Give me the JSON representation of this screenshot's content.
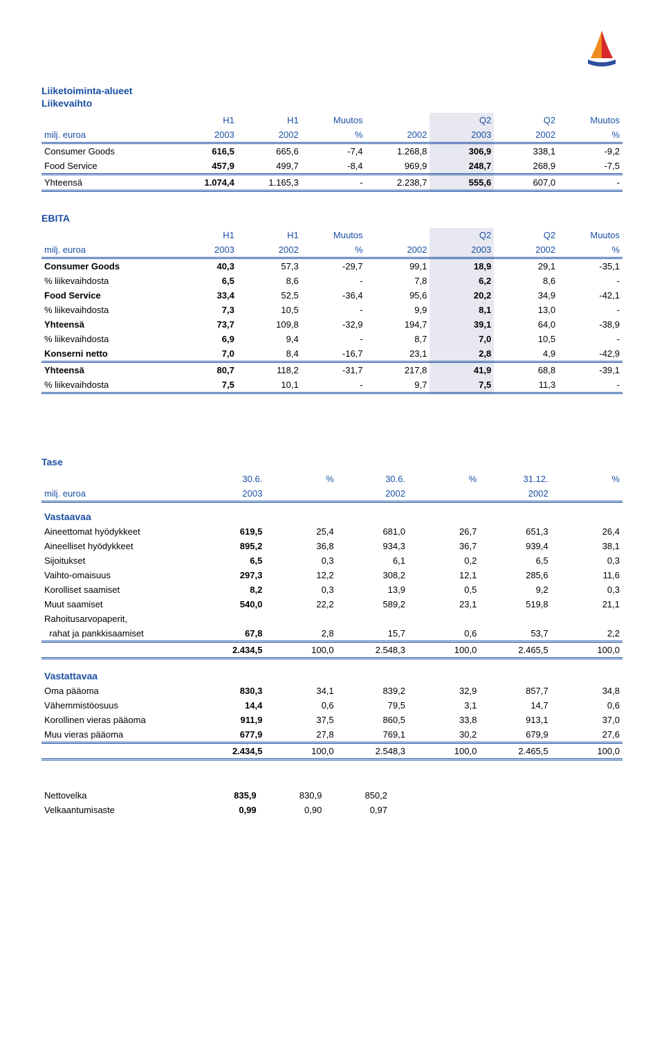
{
  "colors": {
    "heading": "#1a4fa3",
    "highlight_bg": "#e8e8f0",
    "rule": "#1a4fa3",
    "text": "#000000",
    "logo_orange": "#f18a1f",
    "logo_red": "#d7262c",
    "logo_blue": "#2b4f9e"
  },
  "liikevaihto": {
    "title": "Liiketoiminta-alueet",
    "subtitle": "Liikevaihto",
    "hdr1": [
      "",
      "H1",
      "H1",
      "Muutos",
      "",
      "Q2",
      "Q2",
      "Muutos"
    ],
    "hdr2": [
      "milj. euroa",
      "2003",
      "2002",
      "%",
      "2002",
      "2003",
      "2002",
      "%"
    ],
    "rows": [
      {
        "label": "Consumer Goods",
        "bold": false,
        "v": [
          "616,5",
          "665,6",
          "-7,4",
          "1.268,8",
          "306,9",
          "338,1",
          "-9,2"
        ]
      },
      {
        "label": "Food Service",
        "bold": false,
        "v": [
          "457,9",
          "499,7",
          "-8,4",
          "969,9",
          "248,7",
          "268,9",
          "-7,5"
        ]
      }
    ],
    "total": {
      "label": "Yhteensä",
      "v": [
        "1.074,4",
        "1.165,3",
        "-",
        "2.238,7",
        "555,6",
        "607,0",
        "-"
      ]
    }
  },
  "ebita": {
    "title": "EBITA",
    "hdr1": [
      "",
      "H1",
      "H1",
      "Muutos",
      "",
      "Q2",
      "Q2",
      "Muutos"
    ],
    "hdr2": [
      "milj. euroa",
      "2003",
      "2002",
      "%",
      "2002",
      "2003",
      "2002",
      "%"
    ],
    "rows": [
      {
        "label": "Consumer Goods",
        "bold": true,
        "v": [
          "40,3",
          "57,3",
          "-29,7",
          "99,1",
          "18,9",
          "29,1",
          "-35,1"
        ]
      },
      {
        "label": "% liikevaihdosta",
        "bold": false,
        "v": [
          "6,5",
          "8,6",
          "-",
          "7,8",
          "6,2",
          "8,6",
          "-"
        ]
      },
      {
        "label": "Food Service",
        "bold": true,
        "v": [
          "33,4",
          "52,5",
          "-36,4",
          "95,6",
          "20,2",
          "34,9",
          "-42,1"
        ]
      },
      {
        "label": "% liikevaihdosta",
        "bold": false,
        "v": [
          "7,3",
          "10,5",
          "-",
          "9,9",
          "8,1",
          "13,0",
          "-"
        ]
      },
      {
        "label": "Yhteensä",
        "bold": true,
        "v": [
          "73,7",
          "109,8",
          "-32,9",
          "194,7",
          "39,1",
          "64,0",
          "-38,9"
        ]
      },
      {
        "label": "% liikevaihdosta",
        "bold": false,
        "v": [
          "6,9",
          "9,4",
          "-",
          "8,7",
          "7,0",
          "10,5",
          "-"
        ]
      },
      {
        "label": "Konserni netto",
        "bold": true,
        "v": [
          "7,0",
          "8,4",
          "-16,7",
          "23,1",
          "2,8",
          "4,9",
          "-42,9"
        ]
      }
    ],
    "totals": [
      {
        "label": "Yhteensä",
        "bold": true,
        "v": [
          "80,7",
          "118,2",
          "-31,7",
          "217,8",
          "41,9",
          "68,8",
          "-39,1"
        ]
      },
      {
        "label": "% liikevaihdosta",
        "bold": false,
        "v": [
          "7,5",
          "10,1",
          "-",
          "9,7",
          "7,5",
          "11,3",
          "-"
        ]
      }
    ]
  },
  "tase": {
    "title": "Tase",
    "hdr1": [
      "",
      "30.6.",
      "%",
      "30.6.",
      "%",
      "31.12.",
      "%"
    ],
    "hdr2": [
      "milj. euroa",
      "2003",
      "",
      "2002",
      "",
      "2002",
      ""
    ],
    "vastaavaa_title": "Vastaavaa",
    "vastaavaa": [
      {
        "label": "Aineettomat hyödykkeet",
        "v": [
          "619,5",
          "25,4",
          "681,0",
          "26,7",
          "651,3",
          "26,4"
        ]
      },
      {
        "label": "Aineelliset hyödykkeet",
        "v": [
          "895,2",
          "36,8",
          "934,3",
          "36,7",
          "939,4",
          "38,1"
        ]
      },
      {
        "label": "Sijoitukset",
        "v": [
          "6,5",
          "0,3",
          "6,1",
          "0,2",
          "6,5",
          "0,3"
        ]
      },
      {
        "label": "Vaihto-omaisuus",
        "v": [
          "297,3",
          "12,2",
          "308,2",
          "12,1",
          "285,6",
          "11,6"
        ]
      },
      {
        "label": "Korolliset saamiset",
        "v": [
          "8,2",
          "0,3",
          "13,9",
          "0,5",
          "9,2",
          "0,3"
        ]
      },
      {
        "label": "Muut saamiset",
        "v": [
          "540,0",
          "22,2",
          "589,2",
          "23,1",
          "519,8",
          "21,1"
        ]
      },
      {
        "label": "Rahoitusarvopaperit,",
        "v": [
          "",
          "",
          "",
          "",
          "",
          ""
        ]
      },
      {
        "label": "  rahat ja pankkisaamiset",
        "v": [
          "67,8",
          "2,8",
          "15,7",
          "0,6",
          "53,7",
          "2,2"
        ]
      }
    ],
    "vastaavaa_total": {
      "label": "",
      "v": [
        "2.434,5",
        "100,0",
        "2.548,3",
        "100,0",
        "2.465,5",
        "100,0"
      ]
    },
    "vastattavaa_title": "Vastattavaa",
    "vastattavaa": [
      {
        "label": "Oma pääoma",
        "v": [
          "830,3",
          "34,1",
          "839,2",
          "32,9",
          "857,7",
          "34,8"
        ]
      },
      {
        "label": "Vähemmistöosuus",
        "v": [
          "14,4",
          "0,6",
          "79,5",
          "3,1",
          "14,7",
          "0,6"
        ]
      },
      {
        "label": "Korollinen vieras pääoma",
        "v": [
          "911,9",
          "37,5",
          "860,5",
          "33,8",
          "913,1",
          "37,0"
        ]
      },
      {
        "label": "Muu vieras pääoma",
        "v": [
          "677,9",
          "27,8",
          "769,1",
          "30,2",
          "679,9",
          "27,6"
        ]
      }
    ],
    "vastattavaa_total": {
      "label": "",
      "v": [
        "2.434,5",
        "100,0",
        "2.548,3",
        "100,0",
        "2.465,5",
        "100,0"
      ]
    }
  },
  "footer": {
    "rows": [
      {
        "label": "Nettovelka",
        "v": [
          "835,9",
          "830,9",
          "850,2"
        ]
      },
      {
        "label": "Velkaantumisaste",
        "v": [
          "0,99",
          "0,90",
          "0,97"
        ]
      }
    ]
  }
}
